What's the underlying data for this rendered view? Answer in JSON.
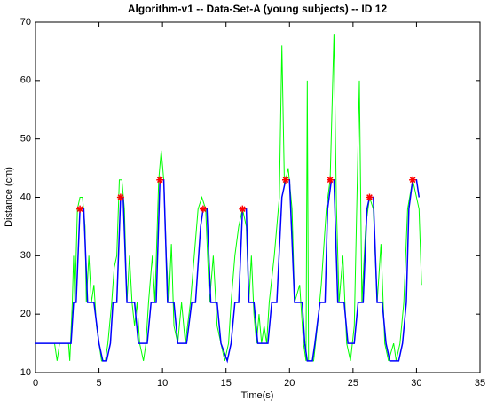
{
  "chart_data": {
    "type": "line",
    "title": "Algorithm-v1 -- Data-Set-A (young subjects) -- ID 12",
    "xlabel": "Time(s)",
    "ylabel": "Distance (cm)",
    "xlim": [
      0,
      35
    ],
    "xticks": [
      0,
      5,
      10,
      15,
      20,
      25,
      30,
      35
    ],
    "ylim": [
      10,
      70
    ],
    "yticks": [
      10,
      20,
      30,
      40,
      50,
      60,
      70
    ],
    "series": [
      {
        "color": "#00ff00",
        "x": [
          0,
          1.5,
          1.7,
          1.9,
          2.6,
          2.7,
          2.9,
          3.0,
          3.1,
          3.3,
          3.5,
          3.7,
          3.9,
          4.0,
          4.2,
          4.4,
          4.6,
          4.8,
          5.0,
          5.2,
          5.5,
          5.7,
          6.0,
          6.2,
          6.4,
          6.6,
          6.8,
          7.0,
          7.2,
          7.4,
          7.6,
          7.8,
          8.0,
          8.2,
          8.5,
          8.7,
          8.9,
          9.2,
          9.4,
          9.7,
          9.9,
          10.1,
          10.3,
          10.5,
          10.7,
          10.9,
          11.2,
          11.5,
          11.8,
          12.2,
          12.5,
          12.8,
          13.1,
          13.4,
          13.7,
          14.0,
          14.3,
          14.6,
          14.9,
          15.2,
          15.4,
          15.7,
          16.0,
          16.3,
          16.6,
          16.8,
          17.0,
          17.2,
          17.4,
          17.6,
          17.8,
          18.0,
          18.2,
          18.4,
          18.8,
          19.2,
          19.4,
          19.6,
          19.9,
          20.2,
          20.4,
          20.8,
          21.1,
          21.3,
          21.4,
          21.5,
          21.9,
          22.2,
          22.5,
          22.9,
          23.2,
          23.5,
          23.7,
          23.9,
          24.2,
          24.5,
          24.8,
          25.1,
          25.5,
          25.7,
          26.0,
          26.3,
          26.6,
          26.9,
          27.2,
          27.5,
          27.8,
          28.2,
          28.4,
          28.7,
          29.0,
          29.3,
          29.7,
          30.0,
          30.2,
          30.4
        ],
        "values": [
          15,
          15,
          12,
          15,
          15,
          12,
          22,
          30,
          22,
          38,
          40,
          40,
          35,
          22,
          30,
          22,
          25,
          18,
          15,
          12,
          12,
          15,
          22,
          28,
          30,
          43,
          43,
          38,
          22,
          30,
          22,
          18,
          22,
          15,
          12,
          15,
          22,
          30,
          22,
          43,
          48,
          43,
          30,
          22,
          32,
          18,
          15,
          22,
          15,
          22,
          30,
          38,
          40,
          38,
          22,
          30,
          18,
          15,
          12,
          15,
          22,
          30,
          35,
          38,
          35,
          22,
          30,
          20,
          15,
          20,
          15,
          18,
          15,
          22,
          30,
          40,
          66,
          42,
          45,
          38,
          22,
          25,
          15,
          12,
          60,
          12,
          12,
          18,
          25,
          38,
          43,
          68,
          38,
          22,
          30,
          15,
          12,
          18,
          60,
          22,
          35,
          40,
          38,
          22,
          32,
          15,
          12,
          15,
          12,
          15,
          22,
          38,
          43,
          40,
          38,
          25
        ]
      },
      {
        "color": "#0000ff",
        "x": [
          0,
          2.8,
          3.0,
          3.2,
          3.5,
          3.8,
          4.1,
          4.6,
          5.0,
          5.3,
          5.6,
          5.9,
          6.1,
          6.4,
          6.7,
          6.9,
          7.2,
          7.8,
          8.1,
          8.8,
          9.1,
          9.5,
          9.8,
          10.1,
          10.4,
          10.9,
          11.2,
          11.9,
          12.3,
          12.6,
          13.0,
          13.2,
          13.5,
          13.8,
          14.3,
          14.6,
          15.1,
          15.4,
          15.7,
          16.0,
          16.3,
          16.6,
          16.8,
          17.2,
          17.5,
          18.3,
          18.6,
          19.0,
          19.4,
          19.7,
          20.0,
          20.4,
          21.0,
          21.2,
          21.4,
          21.8,
          22.0,
          22.4,
          22.8,
          23.0,
          23.3,
          23.5,
          23.8,
          24.3,
          24.6,
          25.1,
          25.4,
          25.8,
          26.1,
          26.3,
          26.6,
          26.9,
          27.3,
          27.6,
          27.9,
          28.6,
          28.9,
          29.2,
          29.4,
          29.7,
          30.0,
          30.2
        ],
        "values": [
          15,
          15,
          22,
          22,
          38,
          38,
          22,
          22,
          15,
          12,
          12,
          15,
          22,
          22,
          40,
          40,
          22,
          22,
          15,
          15,
          22,
          22,
          43,
          43,
          22,
          22,
          15,
          15,
          22,
          22,
          35,
          38,
          38,
          22,
          22,
          15,
          12,
          15,
          22,
          22,
          38,
          38,
          22,
          22,
          15,
          15,
          22,
          22,
          40,
          43,
          43,
          22,
          22,
          15,
          12,
          12,
          15,
          22,
          22,
          38,
          43,
          43,
          22,
          22,
          15,
          15,
          22,
          22,
          38,
          40,
          40,
          22,
          22,
          15,
          12,
          12,
          15,
          22,
          38,
          43,
          43,
          40
        ]
      },
      {
        "color": "#ff0000",
        "marker": "*",
        "x": [
          3.5,
          6.7,
          9.8,
          13.2,
          16.3,
          19.7,
          23.2,
          26.3,
          29.7
        ],
        "values": [
          38,
          40,
          43,
          38,
          38,
          43,
          43,
          40,
          43
        ]
      }
    ]
  }
}
